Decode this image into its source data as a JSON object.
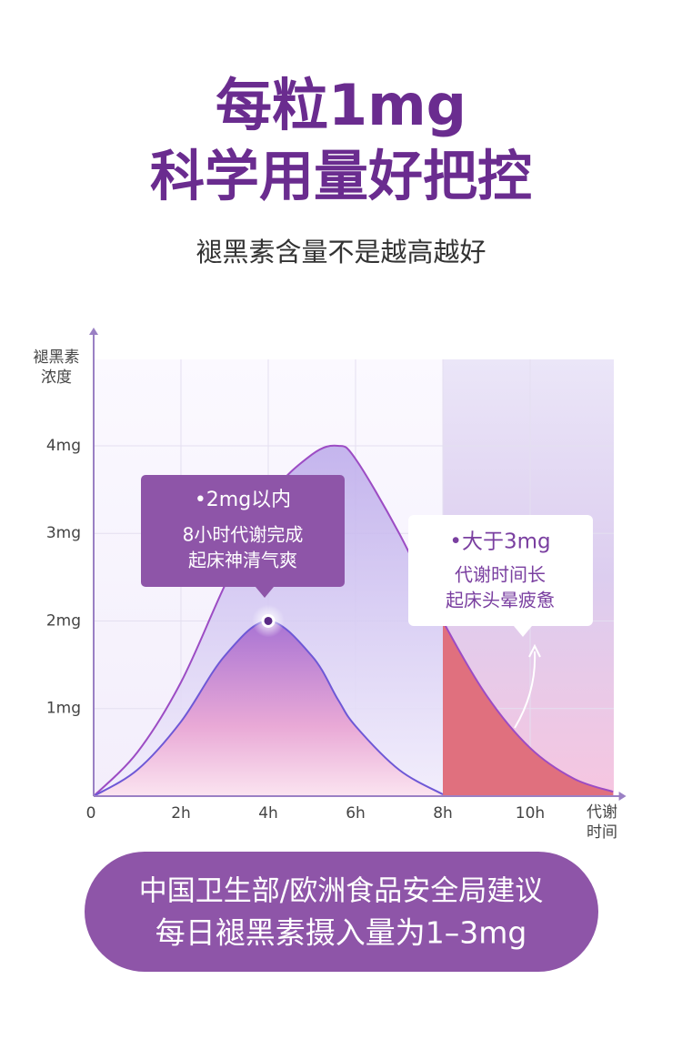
{
  "header": {
    "title": [
      "每粒1mg",
      "科学用量好把控"
    ],
    "subtitle": "褪黑素含量不是越高越好"
  },
  "chart_data": {
    "type": "line",
    "y_label": [
      "褪黑素",
      "浓度"
    ],
    "x_label": [
      "代谢",
      "时间"
    ],
    "x": [
      0,
      1,
      2,
      3,
      4,
      5,
      5.6,
      6,
      7,
      8,
      9,
      10,
      11,
      11.9
    ],
    "series": [
      {
        "color": "#9c4cc4",
        "values": [
          0,
          0.5,
          1.3,
          2.4,
          3.4,
          3.9,
          4,
          3.85,
          3.0,
          2.0,
          1.15,
          0.55,
          0.2,
          0.05
        ]
      },
      {
        "color": "#6e58d6",
        "values": [
          0,
          0.3,
          0.85,
          1.6,
          2,
          1.6,
          1.1,
          0.8,
          0.3,
          0.02,
          null,
          null,
          null,
          null
        ]
      }
    ],
    "xlim": [
      0,
      12.2
    ],
    "ylim": [
      0,
      5.35
    ],
    "xticks": [
      0,
      {
        "value": 2,
        "label": "2h"
      },
      {
        "value": 4,
        "label": "4h"
      },
      {
        "value": 6,
        "label": "6h"
      },
      {
        "value": 8,
        "label": "8h"
      },
      {
        "value": 10,
        "label": "10h"
      }
    ],
    "yticks": [
      {
        "value": 1,
        "label": "1mg"
      },
      {
        "value": 2,
        "label": "2mg"
      },
      {
        "value": 3,
        "label": "3mg"
      },
      {
        "value": 4,
        "label": "4mg"
      }
    ],
    "grid": true,
    "highlight_from": 8
  },
  "annotations": [
    {
      "heading": "•2mg以内",
      "lines": [
        "8小时代谢完成",
        "起床神清气爽"
      ]
    },
    {
      "heading": "•大于3mg",
      "lines": [
        "代谢时间长",
        "起床头晕疲惫"
      ]
    }
  ],
  "footer": [
    "中国卫生部/欧洲食品安全局建议",
    "每日褪黑素摄入量为1–3mg"
  ]
}
